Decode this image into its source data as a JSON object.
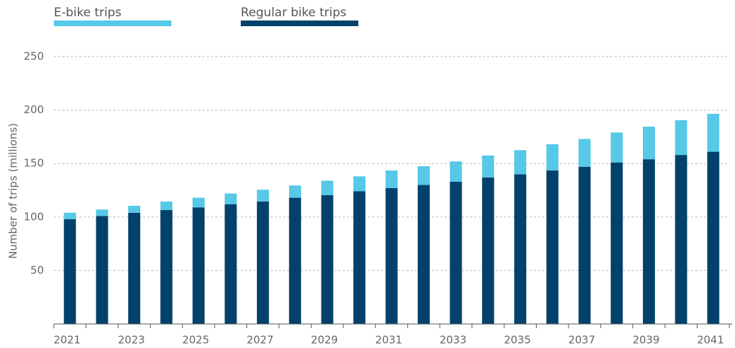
{
  "chart_data": {
    "type": "stacked-bar",
    "ylabel": "Number of trips (millions)",
    "categories": [
      "2021",
      null,
      "2023",
      null,
      "2025",
      null,
      "2027",
      null,
      "2029",
      null,
      "2031",
      null,
      "2033",
      null,
      "2035",
      null,
      "2037",
      null,
      "2039",
      null,
      "2041"
    ],
    "series": [
      {
        "name": "E-bike trips",
        "color": "#56c8e8",
        "values": [
          6,
          6,
          6.5,
          8,
          9,
          10,
          11,
          11.5,
          13.5,
          14,
          16.5,
          17.5,
          19,
          20.5,
          22.5,
          24.5,
          26,
          28,
          30.5,
          32.5,
          35.5
        ]
      },
      {
        "name": "Regular bike trips",
        "color": "#00426b",
        "values": [
          98,
          101,
          104,
          106.5,
          109,
          112,
          114.5,
          118,
          120.5,
          124,
          127,
          130,
          133,
          137,
          140,
          143.5,
          147,
          151,
          154,
          158,
          161
        ]
      }
    ],
    "ylim": [
      0,
      250
    ],
    "yticks": [
      50,
      100,
      150,
      200,
      250
    ],
    "grid": true
  }
}
